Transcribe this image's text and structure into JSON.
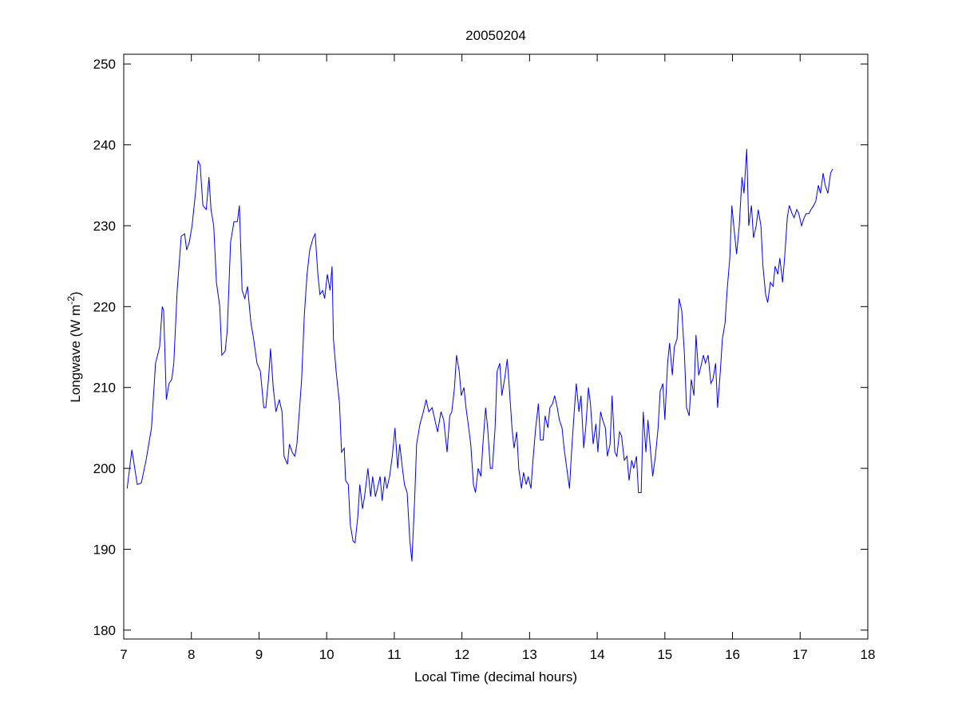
{
  "chart_data": {
    "type": "line",
    "title": "20050204",
    "xlabel": "Local Time (decimal hours)",
    "ylabel": [
      "Longwave (W m",
      "-2",
      ")"
    ],
    "color": "#0000ff",
    "xlim": [
      7,
      18
    ],
    "xticks": [
      7,
      8,
      9,
      10,
      11,
      12,
      13,
      14,
      15,
      16,
      17,
      18
    ],
    "ylim": [
      178.9,
      251.2
    ],
    "yticks": [
      180,
      190,
      200,
      210,
      220,
      230,
      240,
      250
    ],
    "grid": false,
    "x": [
      7.05,
      7.12,
      7.2,
      7.26,
      7.33,
      7.41,
      7.47,
      7.53,
      7.57,
      7.59,
      7.63,
      7.67,
      7.71,
      7.74,
      7.79,
      7.85,
      7.9,
      7.93,
      7.97,
      8.01,
      8.06,
      8.1,
      8.13,
      8.17,
      8.22,
      8.26,
      8.29,
      8.33,
      8.37,
      8.42,
      8.45,
      8.5,
      8.53,
      8.58,
      8.63,
      8.68,
      8.71,
      8.75,
      8.79,
      8.83,
      8.88,
      8.92,
      8.97,
      9.02,
      9.07,
      9.1,
      9.14,
      9.17,
      9.21,
      9.25,
      9.3,
      9.34,
      9.37,
      9.42,
      9.45,
      9.49,
      9.53,
      9.56,
      9.6,
      9.63,
      9.67,
      9.71,
      9.75,
      9.8,
      9.83,
      9.87,
      9.9,
      9.94,
      9.97,
      10.01,
      10.05,
      10.08,
      10.1,
      10.14,
      10.19,
      10.22,
      10.26,
      10.28,
      10.32,
      10.35,
      10.39,
      10.42,
      10.46,
      10.49,
      10.53,
      10.56,
      10.61,
      10.65,
      10.68,
      10.72,
      10.75,
      10.79,
      10.82,
      10.86,
      10.89,
      10.93,
      10.97,
      11.01,
      11.05,
      11.08,
      11.12,
      11.15,
      11.19,
      11.23,
      11.26,
      11.3,
      11.33,
      11.38,
      11.43,
      11.47,
      11.51,
      11.56,
      11.6,
      11.64,
      11.69,
      11.73,
      11.78,
      11.82,
      11.85,
      11.89,
      11.92,
      11.96,
      11.99,
      12.03,
      12.06,
      12.1,
      12.13,
      12.17,
      12.2,
      12.24,
      12.28,
      12.31,
      12.35,
      12.38,
      12.42,
      12.45,
      12.49,
      12.52,
      12.56,
      12.59,
      12.63,
      12.67,
      12.7,
      12.74,
      12.77,
      12.81,
      12.84,
      12.88,
      12.91,
      12.95,
      12.98,
      13.02,
      13.05,
      13.09,
      13.13,
      13.16,
      13.2,
      13.23,
      13.27,
      13.3,
      13.34,
      13.37,
      13.41,
      13.44,
      13.48,
      13.51,
      13.55,
      13.59,
      13.62,
      13.66,
      13.69,
      13.73,
      13.76,
      13.8,
      13.83,
      13.87,
      13.9,
      13.94,
      13.98,
      14.01,
      14.05,
      14.08,
      14.12,
      14.15,
      14.19,
      14.22,
      14.26,
      14.29,
      14.33,
      14.36,
      14.4,
      14.44,
      14.47,
      14.51,
      14.54,
      14.58,
      14.61,
      14.65,
      14.68,
      14.72,
      14.75,
      14.79,
      14.82,
      14.86,
      14.9,
      14.93,
      14.97,
      15.0,
      15.04,
      15.07,
      15.11,
      15.14,
      15.18,
      15.21,
      15.25,
      15.29,
      15.32,
      15.36,
      15.39,
      15.43,
      15.46,
      15.5,
      15.53,
      15.57,
      15.6,
      15.64,
      15.68,
      15.71,
      15.75,
      15.78,
      15.82,
      15.85,
      15.89,
      15.92,
      15.96,
      15.99,
      16.03,
      16.06,
      16.1,
      16.14,
      16.17,
      16.21,
      16.24,
      16.28,
      16.31,
      16.35,
      16.38,
      16.42,
      16.45,
      16.49,
      16.52,
      16.56,
      16.6,
      16.63,
      16.67,
      16.7,
      16.74,
      16.77,
      16.81,
      16.84,
      16.88,
      16.91,
      16.95,
      16.98,
      17.02,
      17.06,
      17.09,
      17.13,
      17.16,
      17.2,
      17.23,
      17.27,
      17.3,
      17.34,
      17.37,
      17.41,
      17.45,
      17.48
    ],
    "values": [
      197.5,
      202.3,
      198,
      198.2,
      201,
      205,
      213,
      215,
      220,
      219.5,
      208.5,
      210.5,
      211,
      213,
      222,
      228.7,
      229,
      227,
      228,
      230,
      234,
      238,
      237.5,
      232.5,
      232,
      236,
      232,
      230,
      223,
      220,
      214,
      214.5,
      217,
      228,
      230.5,
      230.5,
      232.5,
      222,
      221,
      222.5,
      218,
      216,
      213,
      212,
      207.5,
      207.5,
      211,
      214.8,
      210,
      207,
      208.5,
      207,
      201.5,
      200.5,
      203,
      202,
      201.5,
      203,
      207.5,
      211,
      219,
      224,
      227,
      228.5,
      229,
      224,
      221.5,
      222,
      221,
      224,
      222,
      225,
      216,
      212,
      208,
      202,
      202.5,
      198.5,
      198,
      193,
      191,
      190.8,
      194,
      198,
      195,
      196.5,
      200,
      196.5,
      199,
      196.5,
      197.5,
      199,
      196,
      199,
      197.5,
      199,
      201.5,
      205,
      200,
      203,
      200,
      198,
      197,
      191,
      188.5,
      196,
      203,
      205.5,
      207,
      208.5,
      207,
      207.5,
      206,
      204.5,
      207,
      206,
      202,
      206.5,
      207,
      210,
      214,
      212,
      209,
      210,
      207.5,
      205,
      203,
      198,
      197,
      200,
      199,
      203,
      207.5,
      205,
      200,
      200,
      205,
      212,
      213,
      209,
      211,
      213.5,
      210,
      205,
      202.5,
      204.5,
      200,
      197.5,
      199.5,
      198,
      199,
      197.5,
      201,
      205,
      208,
      203.5,
      203.5,
      206.5,
      205,
      207.5,
      208,
      209,
      207.5,
      206,
      205,
      202.5,
      200,
      197.5,
      202,
      207,
      210.5,
      207,
      209,
      202.5,
      205,
      210,
      208,
      203,
      205.5,
      202,
      207,
      206,
      205,
      201.5,
      203,
      209,
      202,
      201.5,
      204.5,
      204,
      201,
      201.5,
      198.5,
      201,
      200,
      201.5,
      197,
      197,
      207,
      202,
      206,
      202,
      199,
      201.5,
      205,
      209.5,
      210.5,
      206,
      213,
      215.5,
      211.5,
      215,
      216,
      221,
      219.5,
      214,
      207.5,
      206.5,
      211,
      209,
      216.5,
      211.5,
      212.5,
      214,
      213,
      214,
      210.5,
      211,
      213,
      207.5,
      212,
      216,
      218,
      222,
      226,
      232.5,
      229,
      226.5,
      230,
      236,
      234,
      239.5,
      230,
      232.5,
      228.5,
      230,
      232,
      230,
      225,
      221.5,
      220.5,
      223,
      222.5,
      225,
      224,
      226,
      223,
      226,
      231,
      232.5,
      231.5,
      231,
      232,
      231.5,
      230,
      231,
      231.5,
      231.5,
      232,
      232.5,
      233,
      235,
      234,
      236.5,
      235,
      234,
      236.5,
      237
    ]
  }
}
